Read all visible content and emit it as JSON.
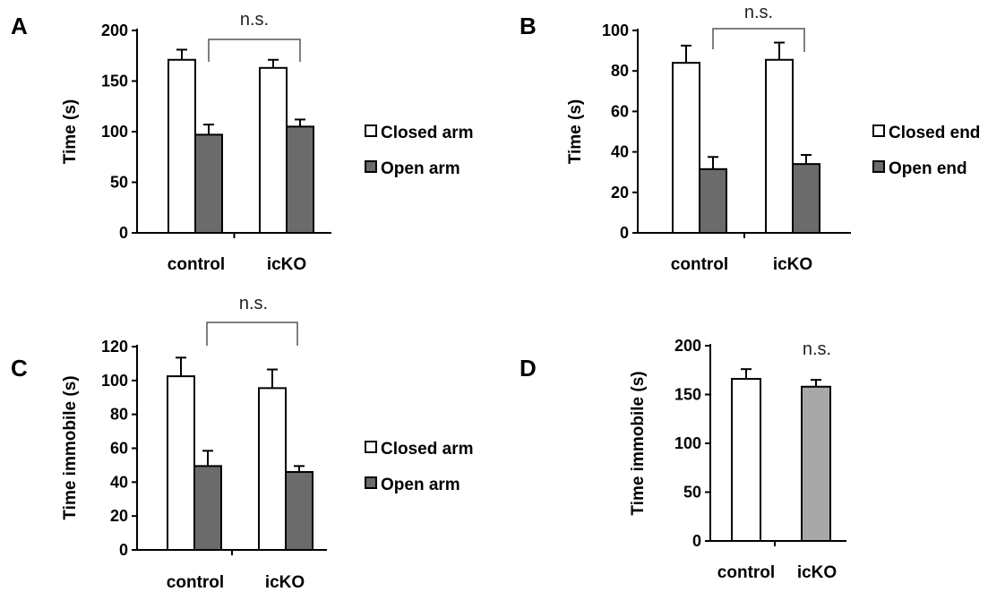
{
  "chart_data": [
    {
      "panel": "A",
      "type": "bar",
      "categories": [
        "control",
        "icKO"
      ],
      "ylabel": "Time (s)",
      "ylim": [
        0,
        200
      ],
      "yticks": [
        0,
        50,
        100,
        150,
        200
      ],
      "series": [
        {
          "name": "Closed arm",
          "values": [
            171,
            163
          ],
          "errors": [
            10,
            8
          ],
          "color": "#ffffff"
        },
        {
          "name": "Open arm",
          "values": [
            97,
            105
          ],
          "errors": [
            10,
            7
          ],
          "color": "#6b6b6b"
        }
      ],
      "annotation": "n.s.",
      "legend_position": "right"
    },
    {
      "panel": "B",
      "type": "bar",
      "categories": [
        "control",
        "icKO"
      ],
      "ylabel": "Time (s)",
      "ylim": [
        0,
        100
      ],
      "yticks": [
        0,
        20,
        40,
        60,
        80,
        100
      ],
      "series": [
        {
          "name": "Closed end",
          "values": [
            84,
            85.5
          ],
          "errors": [
            8.5,
            8.5
          ],
          "color": "#ffffff"
        },
        {
          "name": "Open end",
          "values": [
            31.5,
            34
          ],
          "errors": [
            6,
            4.5
          ],
          "color": "#6b6b6b"
        }
      ],
      "annotation": "n.s.",
      "legend_position": "right"
    },
    {
      "panel": "C",
      "type": "bar",
      "categories": [
        "control",
        "icKO"
      ],
      "ylabel": "Time immobile (s)",
      "ylim": [
        0,
        120
      ],
      "yticks": [
        0,
        20,
        40,
        60,
        80,
        100,
        120
      ],
      "series": [
        {
          "name": "Closed arm",
          "values": [
            102.5,
            95.5
          ],
          "errors": [
            11,
            11
          ],
          "color": "#ffffff"
        },
        {
          "name": "Open arm",
          "values": [
            49.5,
            46
          ],
          "errors": [
            9,
            3.5
          ],
          "color": "#6b6b6b"
        }
      ],
      "annotation": "n.s.",
      "legend_position": "right"
    },
    {
      "panel": "D",
      "type": "bar",
      "categories": [
        "control",
        "icKO"
      ],
      "ylabel": "Time immobile (s)",
      "ylim": [
        0,
        200
      ],
      "yticks": [
        0,
        50,
        100,
        150,
        200
      ],
      "series": [
        {
          "values": [
            166,
            158
          ],
          "errors": [
            10,
            7
          ],
          "colors": [
            "#ffffff",
            "#a8a8a8"
          ]
        }
      ],
      "annotation": "n.s.",
      "legend_position": "none"
    }
  ]
}
